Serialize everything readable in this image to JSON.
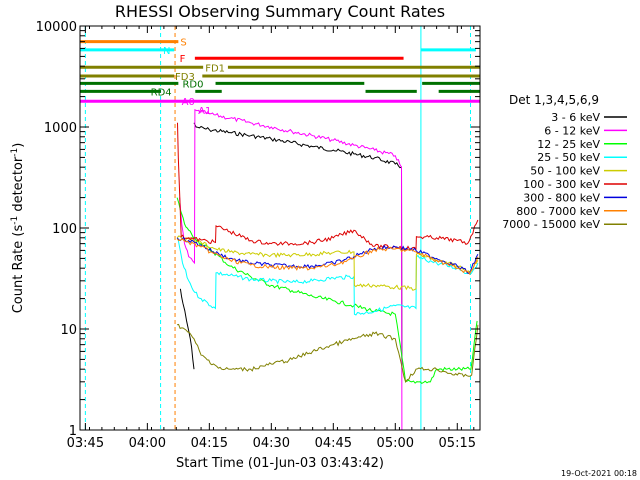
{
  "chart_data": {
    "type": "line",
    "title": "RHESSI Observing Summary Count Rates",
    "xlabel": "Start Time (01-Jun-03 03:43:42)",
    "ylabel_main": "Count Rate (s",
    "ylabel_sup1": "-1",
    "ylabel_mid": " detector",
    "ylabel_sup2": "-1",
    "ylabel_end": ")",
    "footer": "19-Oct-2021 00:18",
    "x_ticks": [
      {
        "value": 225,
        "label": "03:45"
      },
      {
        "value": 240,
        "label": "04:00"
      },
      {
        "value": 255,
        "label": "04:15"
      },
      {
        "value": 270,
        "label": "04:30"
      },
      {
        "value": 285,
        "label": "04:45"
      },
      {
        "value": 300,
        "label": "05:00"
      },
      {
        "value": 315,
        "label": "05:15"
      }
    ],
    "xlim": [
      223.7,
      320.5
    ],
    "y_scale": "log",
    "ylim": [
      1,
      10000
    ],
    "y_ticks": [
      {
        "value": 1,
        "label": "1"
      },
      {
        "value": 10,
        "label": "10"
      },
      {
        "value": 100,
        "label": "100"
      },
      {
        "value": 1000,
        "label": "1000"
      },
      {
        "value": 10000,
        "label": "10000"
      }
    ],
    "legend": {
      "placement": "right",
      "header": "Det 1,3,4,5,6,9",
      "entries": [
        {
          "label": "3 - 6 keV",
          "color": "#000000"
        },
        {
          "label": "6 - 12 keV",
          "color": "#ff00ff"
        },
        {
          "label": "12 - 25 keV",
          "color": "#00ff00"
        },
        {
          "label": "25 - 50 keV",
          "color": "#00ffff"
        },
        {
          "label": "50 - 100 keV",
          "color": "#cccc00"
        },
        {
          "label": "100 - 300 keV",
          "color": "#dd0000"
        },
        {
          "label": "300 - 800 keV",
          "color": "#0000dd"
        },
        {
          "label": "800 - 7000 keV",
          "color": "#ff8000"
        },
        {
          "label": "7000 - 15000 keV",
          "color": "#808000"
        }
      ]
    },
    "flag_bars": [
      {
        "name": "S",
        "color": "#ff8000",
        "y": 7000,
        "segments": [
          [
            223.7,
            247.5
          ]
        ],
        "label_at": 248
      },
      {
        "name": "N",
        "color": "#00ffff",
        "y": 5800,
        "segments": [
          [
            223.7,
            246.5
          ],
          [
            306.2,
            319.5
          ]
        ],
        "label_at": 243.8
      },
      {
        "name": "F",
        "color": "#ff0000",
        "y": 4800,
        "segments": [
          [
            251.5,
            302
          ]
        ],
        "label_at": 247.8
      },
      {
        "name": "FD1",
        "color": "#808000",
        "y": 3900,
        "segments": [
          [
            223.7,
            253.5
          ],
          [
            259.5,
            320.5
          ]
        ],
        "label_at": 254
      },
      {
        "name": "FD3",
        "color": "#808000",
        "y": 3200,
        "segments": [
          [
            223.7,
            246.5
          ],
          [
            253.3,
            320.5
          ]
        ],
        "label_at": 246.7
      },
      {
        "name": "RD0",
        "color": "#007000",
        "y": 2700,
        "segments": [
          [
            223.7,
            247.5
          ],
          [
            256.5,
            292.5
          ],
          [
            306.5,
            320.5
          ]
        ],
        "label_at": 248.5
      },
      {
        "name": "RD4",
        "color": "#007000",
        "y": 2250,
        "segments": [
          [
            223.7,
            243.3
          ],
          [
            251.6,
            258
          ],
          [
            292.8,
            305.2
          ],
          [
            310.5,
            320.5
          ]
        ],
        "label_at": 240.8
      },
      {
        "name": "A0",
        "color": "#ff00ff",
        "y": 1800,
        "segments": [
          [
            223.7,
            320.5
          ]
        ],
        "label_at": 248.3
      },
      {
        "name": "A1",
        "color": "#ff00ff",
        "y": 1480,
        "segments": [],
        "label_at": 252.3
      }
    ],
    "vlines": [
      {
        "x": 225,
        "color": "#00ffff",
        "style": "dashed"
      },
      {
        "x": 243.2,
        "color": "#00ffff",
        "style": "dashed"
      },
      {
        "x": 246.7,
        "color": "#ff8000",
        "style": "dashed"
      },
      {
        "x": 306.2,
        "color": "#00ffff",
        "style": "solid"
      },
      {
        "x": 318.2,
        "color": "#00ffff",
        "style": "dashed"
      }
    ],
    "series": [
      {
        "name": "3 - 6 keV",
        "color": "#000000",
        "x": [
          251.3,
          251.8,
          255,
          260,
          265,
          270,
          275,
          280,
          285,
          290,
          295,
          300,
          301.5,
          301.6
        ],
        "y": [
          1100,
          1000,
          940,
          880,
          820,
          760,
          700,
          640,
          590,
          540,
          495,
          430,
          400,
          4
        ]
      },
      {
        "name": "3 - 6 keV (late)",
        "color": "#000000",
        "x": [
          248,
          248.6,
          249.5,
          250.4,
          251,
          251.3
        ],
        "y": [
          25,
          18,
          12,
          8,
          5,
          4
        ]
      },
      {
        "name": "6 - 12 keV",
        "color": "#ff00ff",
        "x": [
          247.8,
          248.3,
          249,
          250,
          251,
          251.4,
          251.5,
          252,
          255,
          260,
          265,
          270,
          275,
          280,
          285,
          290,
          295,
          300,
          301.5,
          301.6
        ],
        "y": [
          200,
          110,
          70,
          52,
          47,
          45,
          1480,
          1450,
          1350,
          1220,
          1100,
          1000,
          900,
          820,
          740,
          660,
          590,
          520,
          400,
          1
        ]
      },
      {
        "name": "12 - 25 keV",
        "color": "#00ff00",
        "x": [
          247.2,
          248,
          249,
          250,
          251.5,
          253,
          256,
          260,
          265,
          270,
          275,
          280,
          285,
          290,
          295,
          300,
          302.5,
          304,
          306,
          308.5,
          310,
          315,
          318.3,
          319.8
        ],
        "y": [
          200,
          150,
          110,
          95,
          80,
          70,
          58,
          42,
          33,
          27,
          24,
          21,
          19,
          17,
          15,
          14,
          3,
          3,
          3,
          3,
          4,
          4,
          4,
          12
        ]
      },
      {
        "name": "25 - 50 keV",
        "color": "#00ffff",
        "x": [
          247.4,
          248.5,
          250,
          251.5,
          253,
          256.5,
          256.6,
          260,
          265,
          270,
          275,
          280,
          285,
          290,
          290.1,
          295,
          300,
          305,
          305.1,
          310,
          315,
          318,
          320
        ],
        "y": [
          80,
          45,
          30,
          23,
          20,
          16,
          36,
          34,
          31,
          30,
          29,
          30,
          32,
          33,
          14,
          15,
          17,
          16,
          52,
          45,
          40,
          35,
          45
        ]
      },
      {
        "name": "50 - 100 keV",
        "color": "#cccc00",
        "x": [
          247.2,
          250,
          253,
          256.5,
          256.6,
          260,
          265,
          270,
          275,
          280,
          285,
          290,
          290.1,
          295,
          300,
          305,
          305.1,
          310,
          315,
          318,
          320
        ],
        "y": [
          80,
          78,
          72,
          62,
          62,
          58,
          55,
          54,
          54,
          55,
          57,
          58,
          27,
          27,
          26,
          25,
          55,
          48,
          42,
          37,
          48
        ]
      },
      {
        "name": "100 - 300 keV",
        "color": "#dd0000",
        "x": [
          247.3,
          247.5,
          248.2,
          250,
          253,
          256.5,
          256.6,
          260,
          265,
          270,
          275,
          280,
          285,
          290,
          295,
          300,
          305,
          305.1,
          310,
          315,
          317.5,
          320
        ],
        "y": [
          1100,
          500,
          82,
          80,
          76,
          72,
          105,
          92,
          75,
          70,
          70,
          72,
          80,
          95,
          66,
          65,
          62,
          82,
          80,
          75,
          70,
          120
        ]
      },
      {
        "name": "300 - 800 keV",
        "color": "#0000dd",
        "x": [
          247.2,
          250,
          253,
          256,
          260,
          265,
          270,
          275,
          280,
          285,
          290,
          295,
          300,
          305,
          310,
          315,
          318,
          320
        ],
        "y": [
          80,
          75,
          68,
          58,
          50,
          45,
          43,
          42,
          42,
          45,
          52,
          63,
          65,
          60,
          50,
          42,
          36,
          55
        ]
      },
      {
        "name": "800 - 7000 keV",
        "color": "#ff8000",
        "x": [
          247.2,
          250,
          253,
          256,
          260,
          265,
          270,
          275,
          280,
          285,
          290,
          295,
          300,
          305,
          310,
          315,
          318,
          320
        ],
        "y": [
          78,
          72,
          65,
          56,
          48,
          43,
          41,
          40,
          40,
          43,
          50,
          61,
          62,
          58,
          48,
          40,
          35,
          52
        ]
      },
      {
        "name": "7000 - 15000 keV",
        "color": "#808000",
        "x": [
          247.2,
          249,
          251.3,
          253,
          256,
          258,
          260,
          265,
          270,
          275,
          280,
          285,
          290,
          295,
          300,
          302.5,
          305,
          308,
          310,
          315,
          318.5,
          320
        ],
        "y": [
          11,
          10,
          8,
          5.5,
          4.5,
          4,
          4,
          4,
          4.5,
          5,
          6,
          7,
          8,
          9,
          8,
          3,
          4,
          4,
          4,
          3.5,
          3.5,
          11
        ]
      }
    ]
  }
}
